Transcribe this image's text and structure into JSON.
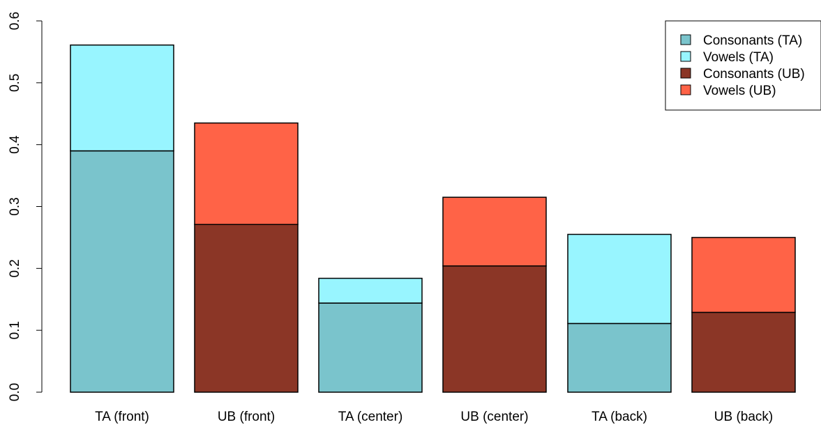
{
  "chart_data": {
    "type": "bar",
    "stacked": true,
    "categories": [
      "TA (front)",
      "UB (front)",
      "TA (center)",
      "UB (center)",
      "TA (back)",
      "UB (back)"
    ],
    "series": [
      {
        "name": "Consonants (TA)",
        "color": "#7AC4CC",
        "values": [
          0.39,
          0,
          0.144,
          0,
          0.111,
          0
        ]
      },
      {
        "name": "Vowels (TA)",
        "color": "#98F5FF",
        "values": [
          0.171,
          0,
          0.04,
          0,
          0.144,
          0
        ]
      },
      {
        "name": "Consonants (UB)",
        "color": "#8B3626",
        "values": [
          0,
          0.271,
          0,
          0.204,
          0,
          0.129
        ]
      },
      {
        "name": "Vowels (UB)",
        "color": "#FF6347",
        "values": [
          0,
          0.164,
          0,
          0.111,
          0,
          0.121
        ]
      }
    ],
    "yticks": [
      "0.0",
      "0.1",
      "0.2",
      "0.3",
      "0.4",
      "0.5",
      "0.6"
    ],
    "ylim": [
      0,
      0.6
    ],
    "legend_position": "top-right",
    "grid": false
  }
}
